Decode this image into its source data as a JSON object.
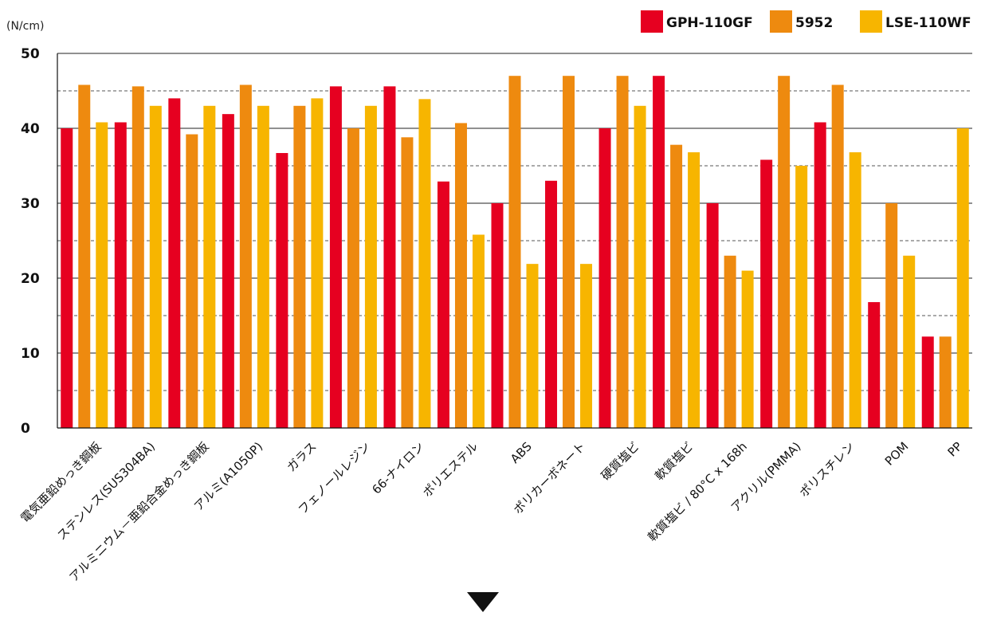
{
  "chart_data": {
    "type": "bar",
    "ylabel": "(N/cm)",
    "ylim": [
      0,
      50
    ],
    "yticks": [
      0,
      10,
      20,
      30,
      40,
      50
    ],
    "grid": "major solid, minor dashed every 5",
    "legend_position": "top-right",
    "categories": [
      "電気亜鉛めっき鋼板",
      "ステンレス(SUS304BA)",
      "アルミニウム－亜鉛合金めっき鋼板",
      "アルミ(A1050P)",
      "ガラス",
      "フェノールレジン",
      "66-ナイロン",
      "ポリエステル",
      "ABS",
      "ポリカーボネート",
      "硬質塩ビ",
      "軟質塩ビ",
      "軟質塩ビ / 80°C x 168h",
      "アクリル(PMMA)",
      "ポリスチレン",
      "POM",
      "PP"
    ],
    "series": [
      {
        "name": "GPH-110GF",
        "color": "#e60020",
        "values": [
          40,
          40.8,
          44,
          41.9,
          36.7,
          45.6,
          45.6,
          32.9,
          30,
          33,
          40,
          47,
          30,
          35.8,
          40.8,
          16.8,
          12.2
        ]
      },
      {
        "name": "5952",
        "color": "#ee8a0f",
        "values": [
          45.8,
          45.6,
          39.2,
          45.8,
          43,
          40,
          38.8,
          40.7,
          47,
          47,
          47,
          37.8,
          23,
          47,
          45.8,
          30,
          12.2
        ]
      },
      {
        "name": "LSE-110WF",
        "color": "#f7b500",
        "values": [
          40.8,
          43,
          43,
          43,
          44,
          43,
          43.9,
          25.8,
          21.9,
          21.9,
          43,
          36.8,
          21,
          35,
          36.8,
          23,
          40
        ]
      }
    ]
  }
}
